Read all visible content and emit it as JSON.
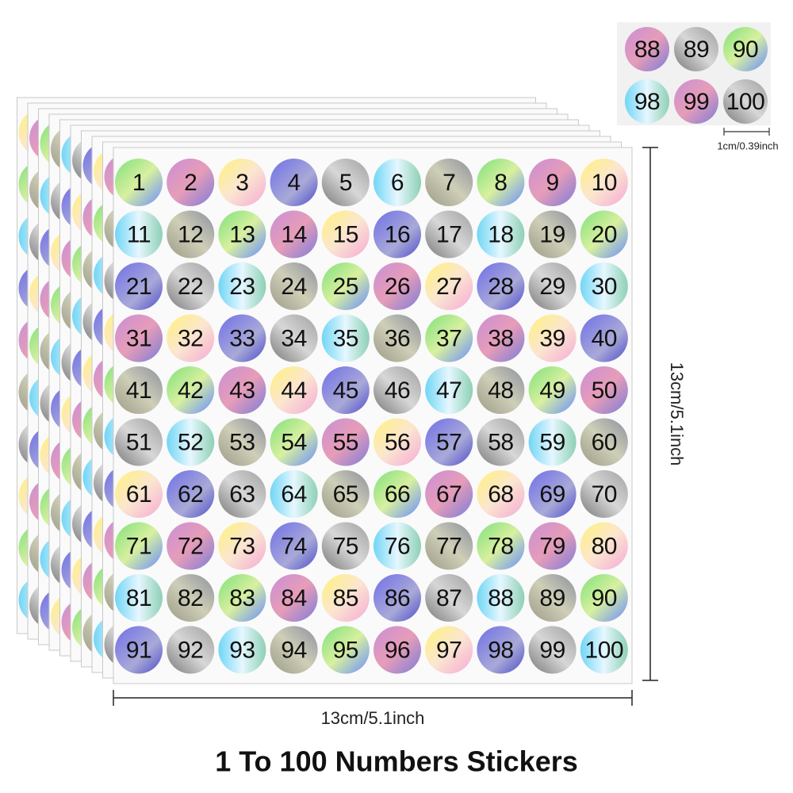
{
  "stickers": [
    "1",
    "2",
    "3",
    "4",
    "5",
    "6",
    "7",
    "8",
    "9",
    "10",
    "11",
    "12",
    "13",
    "14",
    "15",
    "16",
    "17",
    "18",
    "19",
    "20",
    "21",
    "22",
    "23",
    "24",
    "25",
    "26",
    "27",
    "28",
    "29",
    "30",
    "31",
    "32",
    "33",
    "34",
    "35",
    "36",
    "37",
    "38",
    "39",
    "40",
    "41",
    "42",
    "43",
    "44",
    "45",
    "46",
    "47",
    "48",
    "49",
    "50",
    "51",
    "52",
    "53",
    "54",
    "55",
    "56",
    "57",
    "58",
    "59",
    "60",
    "61",
    "62",
    "63",
    "64",
    "65",
    "66",
    "67",
    "68",
    "69",
    "70",
    "71",
    "72",
    "73",
    "74",
    "75",
    "76",
    "77",
    "78",
    "79",
    "80",
    "81",
    "82",
    "83",
    "84",
    "85",
    "86",
    "87",
    "88",
    "89",
    "90",
    "91",
    "92",
    "93",
    "94",
    "95",
    "96",
    "97",
    "98",
    "99",
    "100"
  ],
  "inset": {
    "stickers": [
      "88",
      "89",
      "90",
      "98",
      "99",
      "100"
    ],
    "size_label": "1cm/0.39inch"
  },
  "height_label": "13cm/5.1inch",
  "width_label": "13cm/5.1inch",
  "title": "1 To 100 Numbers Stickers"
}
